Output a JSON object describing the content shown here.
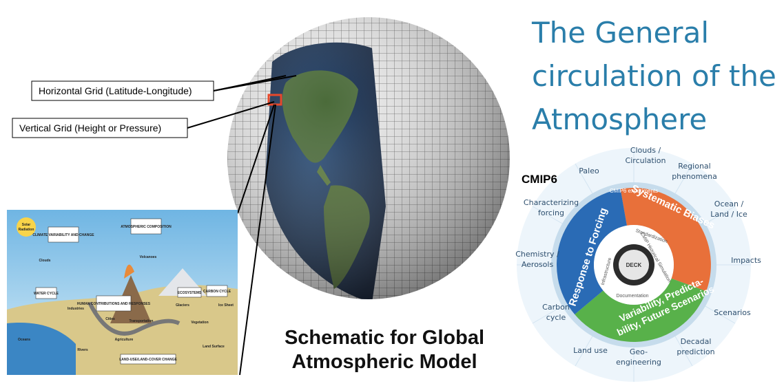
{
  "grid_labels": {
    "horizontal": "Horizontal Grid (Latitude-Longitude)",
    "vertical": "Vertical Grid (Height or Pressure)"
  },
  "schematic_caption": [
    "Schematic for Global",
    "Atmospheric Model"
  ],
  "title": [
    "The General",
    "circulation of the",
    "Atmosphere"
  ],
  "cmip": {
    "label": "CMIP6",
    "themes": [
      [
        "Clouds /",
        "Circulation"
      ],
      [
        "Regional",
        "phenomena"
      ],
      [
        "Ocean /",
        "Land / Ice"
      ],
      [
        "Impacts"
      ],
      [
        "Scenarios"
      ],
      [
        "Decadal",
        "prediction"
      ],
      [
        "Geo-",
        "engineering"
      ],
      [
        "Land use"
      ],
      [
        "Carbon",
        "cycle"
      ],
      [
        "Chemistry /",
        "Aerosols"
      ],
      [
        "Characterizing",
        "forcing"
      ],
      [
        "Paleo"
      ]
    ],
    "ring_title": "CMIP6 experiments",
    "questions": {
      "biases": "Systematic Biases",
      "forcing": "Response to Forcing",
      "variability": [
        "Variability, Predicta-",
        "bility, Future Scenarios"
      ]
    },
    "core": [
      "Standardization",
      "CMIP Historical Simulation",
      "Infrastructure",
      "Documentation"
    ],
    "center": "DECK"
  },
  "earth_system": {
    "solar": [
      "Solar",
      "Radiation"
    ],
    "boxes": [
      "CLIMATE VARIABILITY AND CHANGE",
      "ATMOSPHERIC COMPOSITION",
      "WATER CYCLE",
      "HUMAN CONTRIBUTIONS AND RESPONSES",
      "ECOSYSTEMS",
      "CARBON CYCLE",
      "LAND-USE/LAND-COVER CHANGE"
    ],
    "labels": [
      "Clouds",
      "Volcanoes",
      "Oceans",
      "Rivers",
      "Agriculture",
      "Transportation",
      "Cities",
      "Glaciers",
      "Ice Sheet",
      "Vegetation",
      "Land Surface",
      "Industries"
    ]
  }
}
